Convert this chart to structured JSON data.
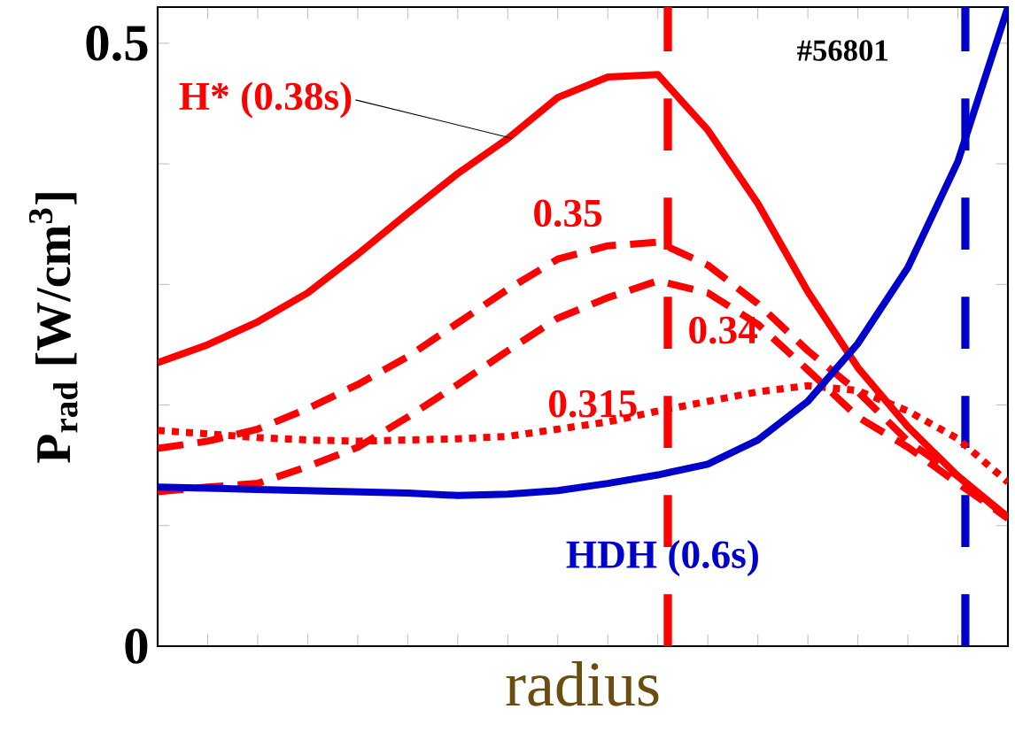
{
  "chart_data": {
    "type": "line",
    "xlabel": "radius",
    "ylabel": "P$_{rad}$ [W/cm$^{3}$]",
    "annotations": [
      "#56801"
    ],
    "categories": [
      null,
      null,
      null,
      null,
      null,
      null,
      null,
      null,
      null,
      null,
      null,
      null,
      null,
      null,
      null,
      null,
      null,
      null
    ],
    "ylim": [
      0,
      0.53
    ],
    "yticks": [
      0,
      {
        "value": 0.1,
        "label": null
      },
      {
        "value": 0.2,
        "label": null
      },
      {
        "value": 0.3,
        "label": null
      },
      {
        "value": 0.4,
        "label": null
      },
      0.5
    ],
    "grid": false,
    "marker": "none",
    "series": [
      {
        "name": "H* (0.38s)",
        "color": "#ff0000",
        "line_style": "solid",
        "values": [
          0.235,
          0.25,
          0.269,
          0.293,
          0.325,
          0.359,
          0.392,
          0.421,
          0.455,
          0.472,
          0.474,
          0.428,
          0.367,
          0.294,
          0.231,
          0.182,
          0.141,
          0.107
        ]
      },
      {
        "name": "0.35",
        "color": "#ff0000",
        "line_style": "dashed",
        "values": [
          0.164,
          0.17,
          0.18,
          0.197,
          0.217,
          0.24,
          0.268,
          0.296,
          0.321,
          0.332,
          0.335,
          0.316,
          0.284,
          0.245,
          0.211,
          0.17,
          0.141,
          0.106
        ]
      },
      {
        "name": "0.34",
        "color": "#ff0000",
        "line_style": "dashed",
        "values": [
          0.128,
          0.132,
          0.135,
          0.149,
          0.165,
          0.19,
          0.217,
          0.245,
          0.272,
          0.289,
          0.303,
          0.293,
          0.267,
          0.229,
          0.19,
          0.165,
          0.135,
          0.106
        ]
      },
      {
        "name": "0.315",
        "color": "#ff0000",
        "line_style": "dotted",
        "values": [
          0.179,
          0.176,
          0.173,
          0.171,
          0.17,
          0.171,
          0.172,
          0.174,
          0.18,
          0.186,
          0.195,
          0.203,
          0.211,
          0.216,
          0.212,
          0.195,
          0.172,
          0.136
        ]
      },
      {
        "name": "HDH (0.6s)",
        "color": "#0000cc",
        "line_style": "solid",
        "values": [
          0.132,
          0.131,
          0.13,
          0.129,
          0.128,
          0.127,
          0.125,
          0.126,
          0.129,
          0.135,
          0.142,
          0.151,
          0.171,
          0.203,
          0.251,
          0.314,
          0.402,
          0.53
        ]
      }
    ]
  }
}
